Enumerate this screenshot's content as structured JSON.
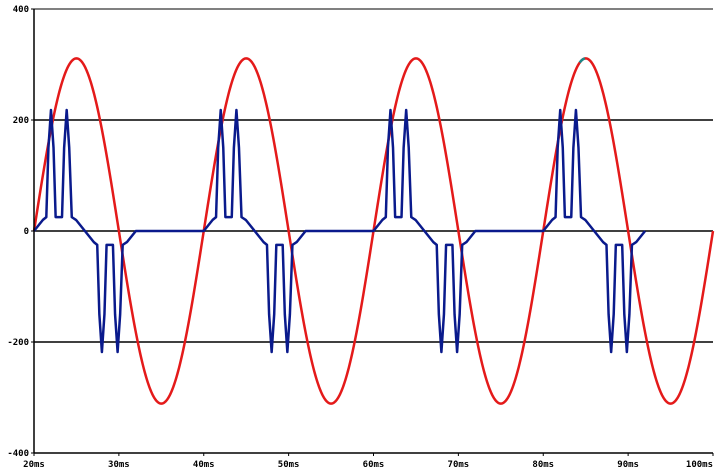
{
  "chart_data": {
    "type": "line",
    "title": "",
    "xlabel": "",
    "ylabel": "",
    "xlim": [
      20,
      100
    ],
    "ylim": [
      -400,
      400
    ],
    "x_unit": "ms",
    "x_tick_values": [
      20,
      30,
      40,
      50,
      60,
      70,
      80,
      90,
      100
    ],
    "x_tick_labels": [
      "20ms",
      "30ms",
      "40ms",
      "50ms",
      "60ms",
      "70ms",
      "80ms",
      "90ms",
      "100ms"
    ],
    "y_tick_values": [
      -400,
      -200,
      0,
      200,
      400
    ],
    "y_tick_labels": [
      "-400",
      "-200",
      "0",
      "200",
      "400"
    ],
    "grid": "horizontal",
    "legend": "none",
    "series": [
      {
        "color": "#e41a1a",
        "shape": "sine",
        "amplitude": 311,
        "frequency_hz": 50,
        "start_ms": 20,
        "end_ms": 100,
        "highlight_color": "#1a8a8a"
      },
      {
        "color": "#0a1a8c",
        "shape": "piecewise",
        "start_ms": 20,
        "end_ms": 100,
        "period_ms": 20,
        "points_first_period": [
          [
            20.0,
            0
          ],
          [
            21.05,
            20
          ],
          [
            21.45,
            25
          ],
          [
            21.7,
            150
          ],
          [
            22.0,
            218
          ],
          [
            22.3,
            150
          ],
          [
            22.55,
            25
          ],
          [
            23.3,
            25
          ],
          [
            23.55,
            150
          ],
          [
            23.85,
            218
          ],
          [
            24.15,
            150
          ],
          [
            24.45,
            25
          ],
          [
            24.95,
            20
          ],
          [
            26.0,
            0
          ],
          [
            26.0,
            0
          ],
          [
            27.05,
            -20
          ],
          [
            27.45,
            -25
          ],
          [
            27.7,
            -150
          ],
          [
            28.0,
            -218
          ],
          [
            28.3,
            -150
          ],
          [
            28.55,
            -25
          ],
          [
            29.3,
            -25
          ],
          [
            29.55,
            -150
          ],
          [
            29.85,
            -218
          ],
          [
            30.15,
            -150
          ],
          [
            30.45,
            -25
          ],
          [
            30.95,
            -20
          ],
          [
            32.0,
            0
          ]
        ]
      }
    ]
  }
}
